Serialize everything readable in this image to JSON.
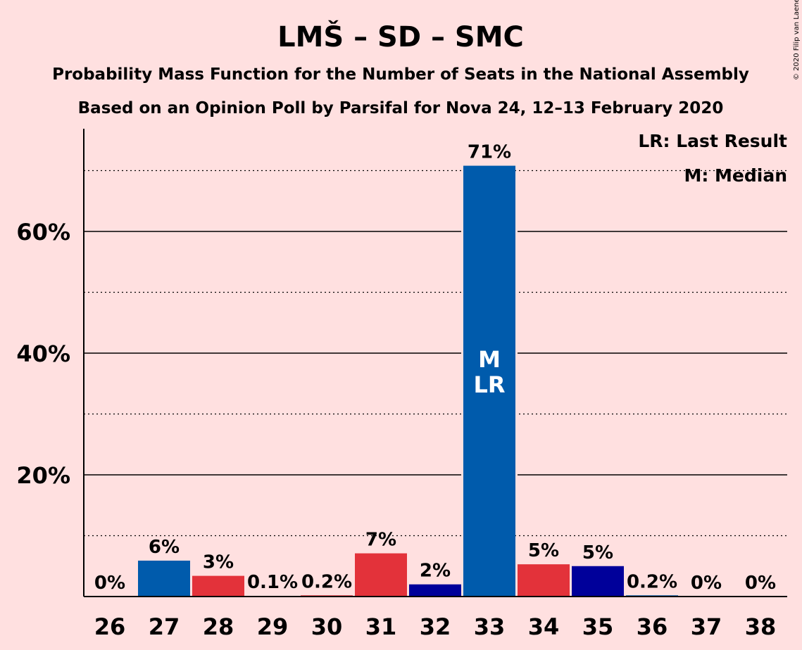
{
  "chart_data": {
    "type": "bar",
    "title": "LMŠ – SD – SMC",
    "subtitle_1": "Probability Mass Function for the Number of Seats in the National Assembly",
    "subtitle_2": "Based on an Opinion Poll by Parsifal for Nova 24, 12–13 February 2020",
    "categories": [
      "26",
      "27",
      "28",
      "29",
      "30",
      "31",
      "32",
      "33",
      "34",
      "35",
      "36",
      "37",
      "38"
    ],
    "values": [
      0,
      6,
      3,
      0.1,
      0.2,
      7,
      2,
      71,
      5,
      5,
      0.2,
      0,
      0
    ],
    "value_labels": [
      "0%",
      "6%",
      "3%",
      "0.1%",
      "0.2%",
      "7%",
      "2%",
      "71%",
      "5%",
      "5%",
      "0.2%",
      "0%",
      "0%"
    ],
    "bar_heights_exact": [
      0,
      5.9,
      3.4,
      0.1,
      0.2,
      7.1,
      2.0,
      70.8,
      5.3,
      5.0,
      0.2,
      0,
      0
    ],
    "bar_colors": [
      "#005BAC",
      "#005BAC",
      "#E3323A",
      "#E3323A",
      "#E3323A",
      "#E3323A",
      "#00009A",
      "#005BAC",
      "#E3323A",
      "#00009A",
      "#005BAC",
      "#005BAC",
      "#005BAC"
    ],
    "y_ticks": [
      20,
      40,
      60
    ],
    "y_tick_labels": [
      "20%",
      "40%",
      "60%"
    ],
    "y_minor_gridlines": [
      10,
      30,
      50,
      70
    ],
    "ylim": [
      0,
      77
    ],
    "xlabel": "",
    "ylabel": "",
    "median_seat": "33",
    "last_result_seat": "33",
    "median_marker": "M",
    "last_result_marker": "LR",
    "legend": [
      "LR: Last Result",
      "M: Median"
    ],
    "legend_position": "top-right",
    "grid": true
  },
  "copyright": "© 2020 Filip van Laenen"
}
